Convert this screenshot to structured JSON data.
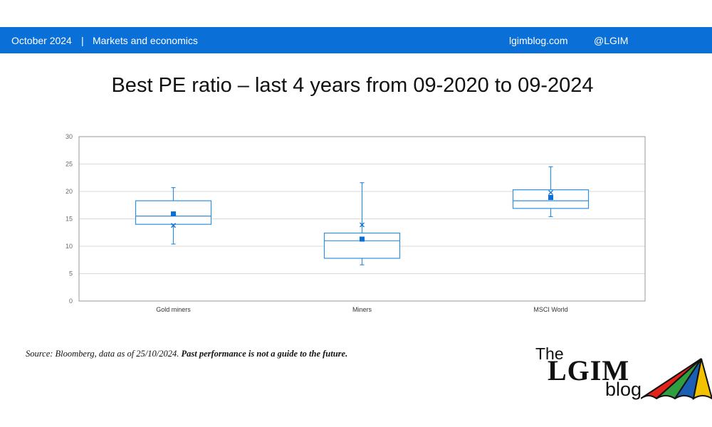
{
  "header": {
    "date": "October 2024",
    "separator": "|",
    "section": "Markets and economics",
    "site": "lgimblog.com",
    "handle": "@LGIM"
  },
  "colors": {
    "header_bar": "#0a6fd6",
    "box_stroke": "#2f8fe0",
    "mean_marker": "#0a6fd6",
    "gridline": "#d9d9d9"
  },
  "chart_data": {
    "type": "boxplot",
    "title": "Best PE ratio – last 4 years from 09-2020 to 09-2024",
    "xlabel": "",
    "ylabel": "",
    "ylim": [
      0,
      30
    ],
    "yticks": [
      0,
      5,
      10,
      15,
      20,
      25,
      30
    ],
    "grid": true,
    "categories": [
      "Gold miners",
      "Miners",
      "MSCI World"
    ],
    "series": [
      {
        "category": "Gold miners",
        "whisker_low": 10.4,
        "q1": 14.0,
        "median": 15.5,
        "q3": 18.3,
        "whisker_high": 20.7,
        "square_marker": 15.9,
        "x_marker": 13.8
      },
      {
        "category": "Miners",
        "whisker_low": 6.6,
        "q1": 7.8,
        "median": 11.0,
        "q3": 12.4,
        "whisker_high": 21.6,
        "square_marker": 11.3,
        "x_marker": 13.9
      },
      {
        "category": "MSCI World",
        "whisker_low": 15.4,
        "q1": 16.9,
        "median": 18.3,
        "q3": 20.3,
        "whisker_high": 24.5,
        "square_marker": 18.9,
        "x_marker": 19.8
      }
    ]
  },
  "footer": {
    "source_text": "Source: Bloomberg, data as of 25/10/2024. ",
    "disclaimer": "Past performance is not a guide to the future."
  },
  "logo": {
    "the": "The",
    "lgim": "LGIM",
    "blog": "blog",
    "umbrella_colors": [
      "#e2231a",
      "#2f9e3f",
      "#1a5fb4",
      "#f2c200"
    ]
  }
}
